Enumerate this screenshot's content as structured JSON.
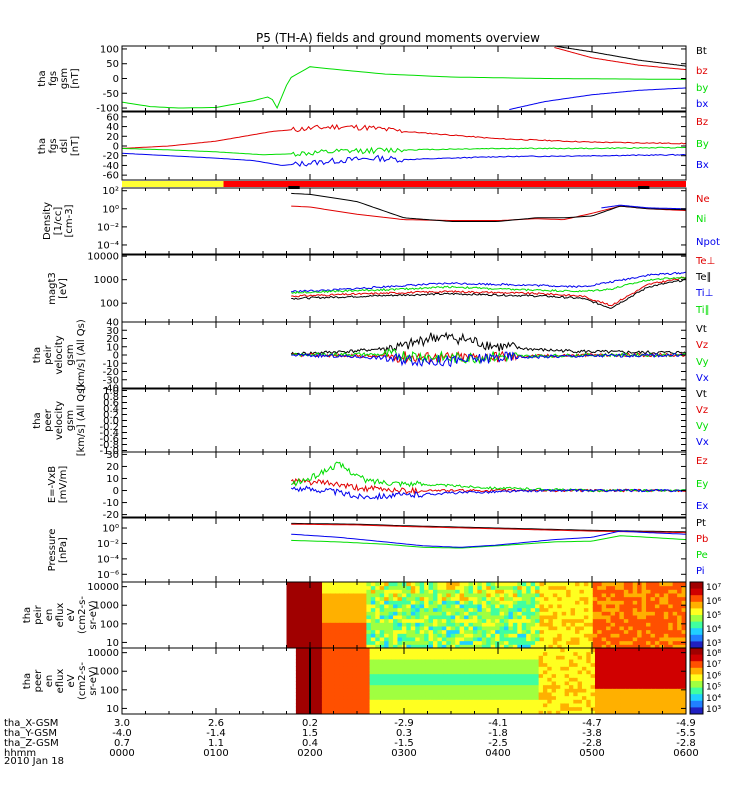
{
  "page": {
    "title": "P5 (TH-A) fields and ground moments overview",
    "footer_rows": [
      {
        "label": "tha_X-GSM",
        "values": [
          "3.0",
          "2.6",
          "0.2",
          "-2.9",
          "-4.1",
          "-4.7",
          "-4.9"
        ]
      },
      {
        "label": "tha_Y-GSM",
        "values": [
          "-4.0",
          "-1.4",
          "1.5",
          "0.3",
          "-1.8",
          "-3.8",
          "-5.5"
        ]
      },
      {
        "label": "tha_Z-GSM",
        "values": [
          "0.7",
          "1.1",
          "0.4",
          "-1.5",
          "-2.5",
          "-2.8",
          "-2.8"
        ]
      },
      {
        "label": "hhmm",
        "values": [
          "0000",
          "0100",
          "0200",
          "0300",
          "0400",
          "0500",
          "0600"
        ]
      }
    ],
    "date": "2010 Jan 18",
    "state_bar": {
      "segments": [
        {
          "from": 0,
          "to": 0.18,
          "color": "#ffff33"
        },
        {
          "from": 0.18,
          "to": 1,
          "color": "#ff0000"
        }
      ],
      "black_marks": [
        [
          0.295,
          0.315
        ],
        [
          0.915,
          0.935
        ]
      ]
    },
    "colors": {
      "black": "#000000",
      "red": "#e00000",
      "green": "#00dd00",
      "blue": "#0000ee"
    }
  },
  "chart_data": [
    {
      "id": "fgs_gsm",
      "type": "line",
      "scale": "linear",
      "ylabel": [
        "tha",
        "fgs",
        "gsm",
        "[nT]"
      ],
      "ylim": [
        -110,
        110
      ],
      "ticks": [
        100,
        50,
        0,
        -50,
        -100
      ],
      "tick_labels": [
        "100",
        "50",
        "0",
        "-50",
        "-100"
      ],
      "legend": [
        "Bt",
        "bz",
        "by",
        "bx"
      ],
      "series": [
        {
          "name": "Bt",
          "color": "#000000",
          "x": [
            4.6,
            5.0,
            5.5,
            6.0
          ],
          "y": [
            110,
            90,
            62,
            42
          ]
        },
        {
          "name": "bz",
          "color": "#e00000",
          "x": [
            4.6,
            5.0,
            5.5,
            6.0
          ],
          "y": [
            105,
            70,
            45,
            30
          ]
        },
        {
          "name": "by",
          "color": "#00dd00",
          "x": [
            0,
            0.3,
            0.6,
            1.0,
            1.4,
            1.58,
            1.65,
            1.78,
            2.0,
            2.3,
            2.8,
            3.5,
            4.5,
            5.5,
            6.0
          ],
          "y": [
            -80,
            -95,
            -100,
            -98,
            -75,
            -60,
            -100,
            0,
            40,
            30,
            15,
            5,
            0,
            -2,
            -3
          ]
        },
        {
          "name": "bx",
          "color": "#0000ee",
          "x": [
            4.12,
            4.5,
            5.0,
            5.5,
            6.0
          ],
          "y": [
            -105,
            -78,
            -55,
            -40,
            -32
          ]
        }
      ]
    },
    {
      "id": "fgs_dsl",
      "type": "line",
      "scale": "linear",
      "ylabel": [
        "tha",
        "fgs",
        "dsl",
        "[nT]"
      ],
      "ylim": [
        -70,
        70
      ],
      "ticks": [
        60,
        40,
        20,
        0,
        -20,
        -40,
        -60
      ],
      "tick_labels": [
        "60",
        "40",
        "20",
        "0",
        "-20",
        "-40",
        "-60"
      ],
      "legend": [
        "Bz",
        "By",
        "Bx"
      ],
      "series": [
        {
          "name": "Bz",
          "color": "#e00000",
          "x": [
            0,
            0.5,
            1.0,
            1.3,
            1.6,
            1.9,
            2.3,
            2.6,
            3.0,
            4.0,
            5.0,
            6.0
          ],
          "y": [
            -5,
            0,
            10,
            20,
            30,
            35,
            40,
            38,
            30,
            15,
            8,
            5
          ]
        },
        {
          "name": "By",
          "color": "#00dd00",
          "x": [
            0,
            0.5,
            1.0,
            1.5,
            2.0,
            2.5,
            3.0,
            4.0,
            5.0,
            6.0
          ],
          "y": [
            -5,
            -8,
            -12,
            -18,
            -15,
            -10,
            -8,
            -5,
            -5,
            -3
          ]
        },
        {
          "name": "Bx",
          "color": "#0000ee",
          "x": [
            0,
            0.5,
            1.0,
            1.4,
            1.7,
            2.0,
            2.3,
            2.7,
            3.0,
            4.0,
            5.0,
            6.0
          ],
          "y": [
            -15,
            -20,
            -25,
            -30,
            -40,
            -35,
            -30,
            -25,
            -28,
            -22,
            -20,
            -18
          ]
        }
      ]
    },
    {
      "id": "density",
      "type": "line",
      "scale": "log",
      "ylabel": [
        "Density",
        "[1/cc]",
        "[cm-3]"
      ],
      "ylim_log": [
        -5,
        2.3
      ],
      "ticks": [
        2,
        0,
        -2,
        -4
      ],
      "tick_labels": [
        "10²",
        "10⁰",
        "10⁻²",
        "10⁻⁴"
      ],
      "legend": [
        "Ne",
        "Ni",
        "Npot"
      ],
      "series": [
        {
          "name": "Ne",
          "color": "#e00000",
          "x": [
            1.8,
            2.0,
            2.5,
            3.0,
            3.5,
            4.0,
            4.4,
            4.7,
            5.0,
            5.3,
            5.6,
            6.0
          ],
          "y": [
            0.3,
            0.2,
            -0.6,
            -1.2,
            -1.3,
            -1.3,
            -1.1,
            -1.2,
            -0.5,
            0.3,
            0,
            -0.2
          ]
        },
        {
          "name": "Ni",
          "color": "#000000",
          "x": [
            1.8,
            2.0,
            2.5,
            3.0,
            3.5,
            4.0,
            4.4,
            4.7,
            5.0,
            5.3,
            5.6,
            6.0
          ],
          "y": [
            1.7,
            1.6,
            0.8,
            -1.0,
            -1.4,
            -1.4,
            -1.0,
            -1.0,
            -0.8,
            0.3,
            0,
            -0.1
          ]
        },
        {
          "name": "Npot",
          "color": "#0000ee",
          "x": [
            5.1,
            5.3,
            5.6,
            6.0
          ],
          "y": [
            0.1,
            0.4,
            0.1,
            0
          ]
        }
      ]
    },
    {
      "id": "mom_temp",
      "type": "line",
      "scale": "log",
      "ylabel": [
        "magt3",
        "[eV]"
      ],
      "ylim_log": [
        1.2,
        4.05
      ],
      "ticks": [
        4,
        3,
        2
      ],
      "tick_labels": [
        "10000",
        "1000",
        "100"
      ],
      "legend": [
        "Te⊥",
        "Te∥",
        "Ti⊥",
        "Ti∥"
      ],
      "series": [
        {
          "name": "Te⊥",
          "color": "#e00000",
          "x": [
            1.8,
            2.2,
            2.6,
            3.0,
            3.5,
            4.0,
            4.5,
            4.9,
            5.2,
            5.6,
            6.0
          ],
          "y": [
            2.3,
            2.35,
            2.4,
            2.45,
            2.5,
            2.45,
            2.4,
            2.3,
            1.9,
            2.8,
            3.1
          ]
        },
        {
          "name": "Te∥",
          "color": "#000000",
          "x": [
            1.8,
            2.2,
            2.6,
            3.0,
            3.5,
            4.0,
            4.5,
            4.9,
            5.2,
            5.6,
            6.0
          ],
          "y": [
            2.2,
            2.25,
            2.3,
            2.35,
            2.4,
            2.35,
            2.3,
            2.2,
            1.8,
            2.7,
            3.0
          ]
        },
        {
          "name": "Ti⊥",
          "color": "#0000ee",
          "x": [
            1.8,
            2.2,
            2.6,
            3.0,
            3.5,
            4.0,
            4.5,
            4.9,
            5.2,
            5.6,
            6.0
          ],
          "y": [
            2.5,
            2.55,
            2.65,
            2.75,
            2.85,
            2.8,
            2.75,
            2.7,
            2.9,
            3.2,
            3.3
          ]
        },
        {
          "name": "Ti∥",
          "color": "#00dd00",
          "x": [
            1.8,
            2.2,
            2.6,
            3.0,
            3.5,
            4.0,
            4.5,
            4.9,
            5.2,
            5.6,
            6.0
          ],
          "y": [
            2.45,
            2.5,
            2.55,
            2.6,
            2.7,
            2.6,
            2.55,
            2.5,
            2.6,
            3.0,
            3.1
          ]
        }
      ]
    },
    {
      "id": "peir_velocity",
      "type": "line",
      "scale": "linear",
      "ylabel": [
        "tha",
        "peir",
        "velocity",
        "gsm",
        "[km/s] (All Qs)"
      ],
      "ylim": [
        -40,
        40
      ],
      "ticks": [
        40,
        30,
        20,
        10,
        0,
        -10,
        -20,
        -30,
        -40
      ],
      "tick_labels": [
        "40",
        "30",
        "20",
        "10",
        "0",
        "-10",
        "-20",
        "-30",
        "-40"
      ],
      "legend": [
        "Vt",
        "Vz",
        "Vy",
        "Vx"
      ],
      "series": [
        {
          "name": "Vt",
          "color": "#000000",
          "x": [
            1.8,
            2.5,
            3.0,
            3.3,
            3.6,
            3.8,
            4.0,
            4.5,
            5.0,
            5.5,
            6.0
          ],
          "y": [
            1,
            5,
            10,
            22,
            20,
            15,
            10,
            6,
            4,
            3,
            3
          ]
        },
        {
          "name": "Vz",
          "color": "#e00000",
          "x": [
            1.8,
            2.5,
            3.0,
            3.5,
            4.0,
            5.0,
            6.0
          ],
          "y": [
            0,
            -1,
            -2,
            -3,
            -2,
            0,
            0
          ]
        },
        {
          "name": "Vy",
          "color": "#00dd00",
          "x": [
            1.8,
            2.5,
            3.0,
            3.5,
            4.0,
            5.0,
            6.0
          ],
          "y": [
            0,
            1,
            0,
            -4,
            -2,
            0,
            0
          ]
        },
        {
          "name": "Vx",
          "color": "#0000ee",
          "x": [
            1.8,
            2.5,
            3.0,
            3.5,
            4.0,
            5.0,
            6.0
          ],
          "y": [
            0,
            -2,
            -5,
            -8,
            -3,
            -1,
            0
          ]
        }
      ]
    },
    {
      "id": "peer_velocity",
      "type": "line",
      "scale": "linear",
      "ylabel": [
        "tha",
        "peer",
        "velocity",
        "gsm",
        "[km/s] (All Qs)"
      ],
      "ylim": [
        -1.05,
        1.05
      ],
      "ticks": [
        1.0,
        0.8,
        0.6,
        0.4,
        0.2,
        0.0,
        -0.2,
        -0.4,
        -0.6,
        -0.8,
        -1.0
      ],
      "tick_labels": [
        "1.0",
        "0.8",
        "0.6",
        "0.4",
        "0.2",
        "0.0",
        "-0.2",
        "-0.4",
        "-0.6",
        "-0.8",
        "-1.0"
      ],
      "legend": [
        "Vt",
        "Vz",
        "Vy",
        "Vx"
      ],
      "series": []
    },
    {
      "id": "efield",
      "type": "line",
      "scale": "linear",
      "ylabel": [
        "E=-VxB",
        "[mV/m]"
      ],
      "ylim": [
        -22,
        32
      ],
      "ticks": [
        30,
        20,
        10,
        0,
        -10,
        -20
      ],
      "tick_labels": [
        "30",
        "20",
        "10",
        "0",
        "-10",
        "-20"
      ],
      "legend": [
        "Ez",
        "Ey",
        "Ex"
      ],
      "series": [
        {
          "name": "Ez",
          "color": "#e00000",
          "x": [
            1.8,
            2.2,
            2.5,
            3.0,
            3.5,
            4.0,
            4.5,
            5.0,
            6.0
          ],
          "y": [
            8,
            6,
            2,
            0,
            0,
            0,
            0,
            0,
            0
          ]
        },
        {
          "name": "Ey",
          "color": "#00dd00",
          "x": [
            1.8,
            2.0,
            2.3,
            2.6,
            3.0,
            3.5,
            4.0,
            4.5,
            5.0,
            6.0
          ],
          "y": [
            5,
            10,
            22,
            8,
            6,
            4,
            2,
            1,
            0,
            0
          ]
        },
        {
          "name": "Ex",
          "color": "#0000ee",
          "x": [
            1.8,
            2.2,
            2.5,
            3.0,
            3.5,
            4.0,
            4.5,
            5.0,
            6.0
          ],
          "y": [
            2,
            0,
            -5,
            -4,
            -2,
            -1,
            0,
            0,
            0
          ]
        }
      ]
    },
    {
      "id": "pressure",
      "type": "line",
      "scale": "log",
      "ylabel": [
        "Pressure",
        "[nPa]"
      ],
      "ylim_log": [
        -7,
        1.3
      ],
      "ticks": [
        0,
        -2,
        -4,
        -6
      ],
      "tick_labels": [
        "10⁰",
        "10⁻²",
        "10⁻⁴",
        "10⁻⁶"
      ],
      "legend": [
        "Pt",
        "Pb",
        "Pe",
        "Pi"
      ],
      "series": [
        {
          "name": "Pt",
          "color": "#000000",
          "x": [
            1.8,
            2.5,
            3.0,
            4.0,
            5.0,
            6.0
          ],
          "y": [
            0.6,
            0.5,
            0.3,
            0,
            -0.3,
            -0.5
          ]
        },
        {
          "name": "Pb",
          "color": "#e00000",
          "x": [
            1.8,
            2.5,
            3.0,
            4.0,
            5.0,
            6.0
          ],
          "y": [
            0.5,
            0.4,
            0.2,
            -0.1,
            -0.4,
            -0.6
          ]
        },
        {
          "name": "Pe",
          "color": "#00dd00",
          "x": [
            1.8,
            2.3,
            2.8,
            3.2,
            3.6,
            4.0,
            4.6,
            5.0,
            5.3,
            5.6,
            6.0
          ],
          "y": [
            -1.6,
            -1.8,
            -2.1,
            -2.5,
            -2.6,
            -2.3,
            -1.8,
            -1.7,
            -1.0,
            -1.2,
            -1.5
          ]
        },
        {
          "name": "Pi",
          "color": "#0000ee",
          "x": [
            1.8,
            2.3,
            2.8,
            3.2,
            3.6,
            4.0,
            4.6,
            5.0,
            5.3,
            5.6,
            6.0
          ],
          "y": [
            -0.8,
            -1.2,
            -1.8,
            -2.3,
            -2.5,
            -2.2,
            -1.5,
            -1.2,
            -0.4,
            -0.6,
            -0.8
          ]
        }
      ]
    },
    {
      "id": "peir_en_eflux",
      "type": "heatmap",
      "scale": "log",
      "ylabel": [
        "tha",
        "peir",
        "en",
        "eflux",
        "eV",
        "(cm2-s-",
        "sr-eV)"
      ],
      "ylim_log": [
        0.7,
        4.25
      ],
      "ticks": [
        4,
        3,
        2,
        1
      ],
      "tick_labels": [
        "10000",
        "1000",
        "100",
        "10"
      ],
      "colorbar_labels": [
        "10⁷",
        "10⁶",
        "10⁵",
        "10⁴",
        "10³"
      ]
    },
    {
      "id": "peer_en_eflux",
      "type": "heatmap",
      "scale": "log",
      "ylabel": [
        "tha",
        "peer",
        "en",
        "eflux",
        "eV",
        "(cm2-s-",
        "sr-eV)"
      ],
      "ylim_log": [
        0.7,
        4.25
      ],
      "ticks": [
        4,
        3,
        2,
        1
      ],
      "tick_labels": [
        "10000",
        "1000",
        "100",
        "10"
      ],
      "colorbar_labels": [
        "10⁸",
        "10⁷",
        "10⁶",
        "10⁵",
        "10⁴",
        "10³"
      ]
    }
  ]
}
